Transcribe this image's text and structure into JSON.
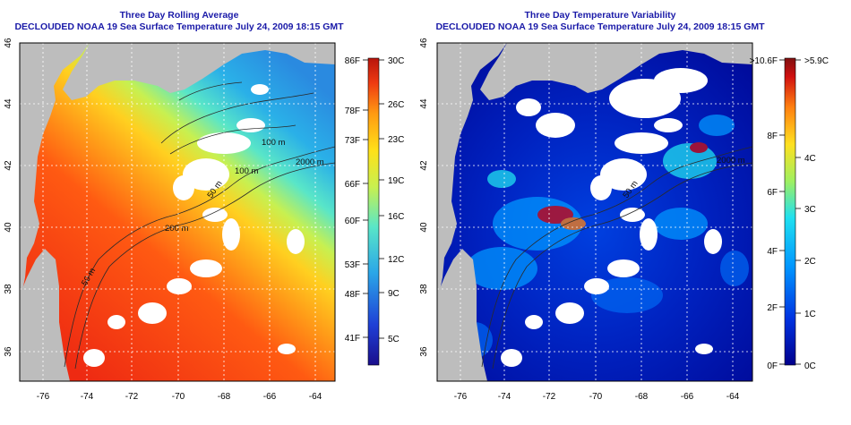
{
  "left_panel": {
    "title_line1": "Three Day Rolling Average",
    "title_line2": "DECLOUDED NOAA 19 Sea Surface Temperature July 24, 2009 18:15 GMT",
    "colorbar_f_labels": [
      "86F",
      "78F",
      "73F",
      "66F",
      "60F",
      "53F",
      "48F",
      "41F"
    ],
    "colorbar_c_labels": [
      "30C",
      "26C",
      "23C",
      "19C",
      "16C",
      "12C",
      "9C",
      "5C"
    ],
    "contour_labels": [
      "100 m",
      "100 m",
      "2000 m",
      "50 m",
      "200 m",
      "50 m"
    ]
  },
  "right_panel": {
    "title_line1": "Three Day Temperature Variability",
    "title_line2": "DECLOUDED NOAA 19 Sea Surface Temperature July 24, 2009 18:15 GMT",
    "colorbar_f_labels": [
      ">10.6F",
      "8F",
      "6F",
      "4F",
      "2F",
      "0F"
    ],
    "colorbar_c_labels": [
      ">5.9C",
      "4C",
      "3C",
      "2C",
      "1C",
      "0C"
    ],
    "contour_labels": [
      "50 m",
      "2000 m"
    ]
  },
  "axes": {
    "lon_labels": [
      "-76",
      "-74",
      "-72",
      "-70",
      "-68",
      "-66",
      "-64"
    ],
    "lat_labels": [
      "36",
      "38",
      "40",
      "42",
      "44",
      "46"
    ]
  },
  "colors": {
    "title": "#1a1aa8",
    "land": "#bdbdbd",
    "sst_scale": [
      "#1a0e8c",
      "#1f3fd6",
      "#2aa6e8",
      "#59e6c8",
      "#c8f050",
      "#ffe018",
      "#ff9a12",
      "#ee3a12",
      "#b8140c"
    ],
    "var_scale": [
      "#00008c",
      "#0032e0",
      "#0096ff",
      "#20e0f0",
      "#a0f060",
      "#ffe020",
      "#ff8010",
      "#d01010",
      "#801010"
    ]
  }
}
